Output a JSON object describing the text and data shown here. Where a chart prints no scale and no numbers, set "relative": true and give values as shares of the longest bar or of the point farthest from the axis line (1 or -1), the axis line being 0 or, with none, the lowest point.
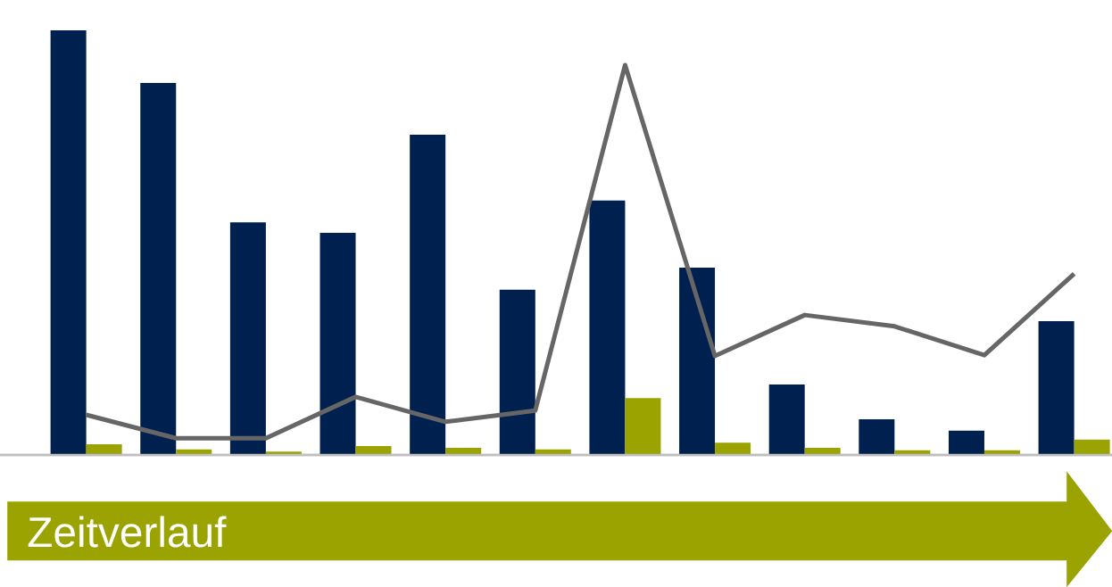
{
  "chart_data": [
    {
      "type": "bar",
      "relative": true,
      "categories": [
        null,
        null,
        null,
        null,
        null,
        null,
        null,
        null,
        null,
        null,
        null,
        null
      ],
      "series": [
        {
          "color": "#002050",
          "values": [
            1,
            0.876,
            0.548,
            0.523,
            0.754,
            0.389,
            0.599,
            0.441,
            0.166,
            0.084,
            0.057,
            0.315
          ]
        },
        {
          "color": "#9aa300",
          "values": [
            0.025,
            0.013,
            0.008,
            0.021,
            0.017,
            0.013,
            0.134,
            0.029,
            0.017,
            0.011,
            0.011,
            0.036
          ]
        }
      ],
      "annotations": [
        "Zeitverlauf"
      ]
    },
    {
      "type": "line",
      "relative": true,
      "categories": [
        null,
        null,
        null,
        null,
        null,
        null,
        null,
        null,
        null,
        null,
        null,
        null
      ],
      "series": [
        {
          "color": "#666666",
          "values": [
            0.103,
            0.043,
            0.043,
            0.149,
            0.085,
            0.114,
            1,
            0.254,
            0.359,
            0.33,
            0.256,
            0.465
          ]
        }
      ]
    }
  ]
}
